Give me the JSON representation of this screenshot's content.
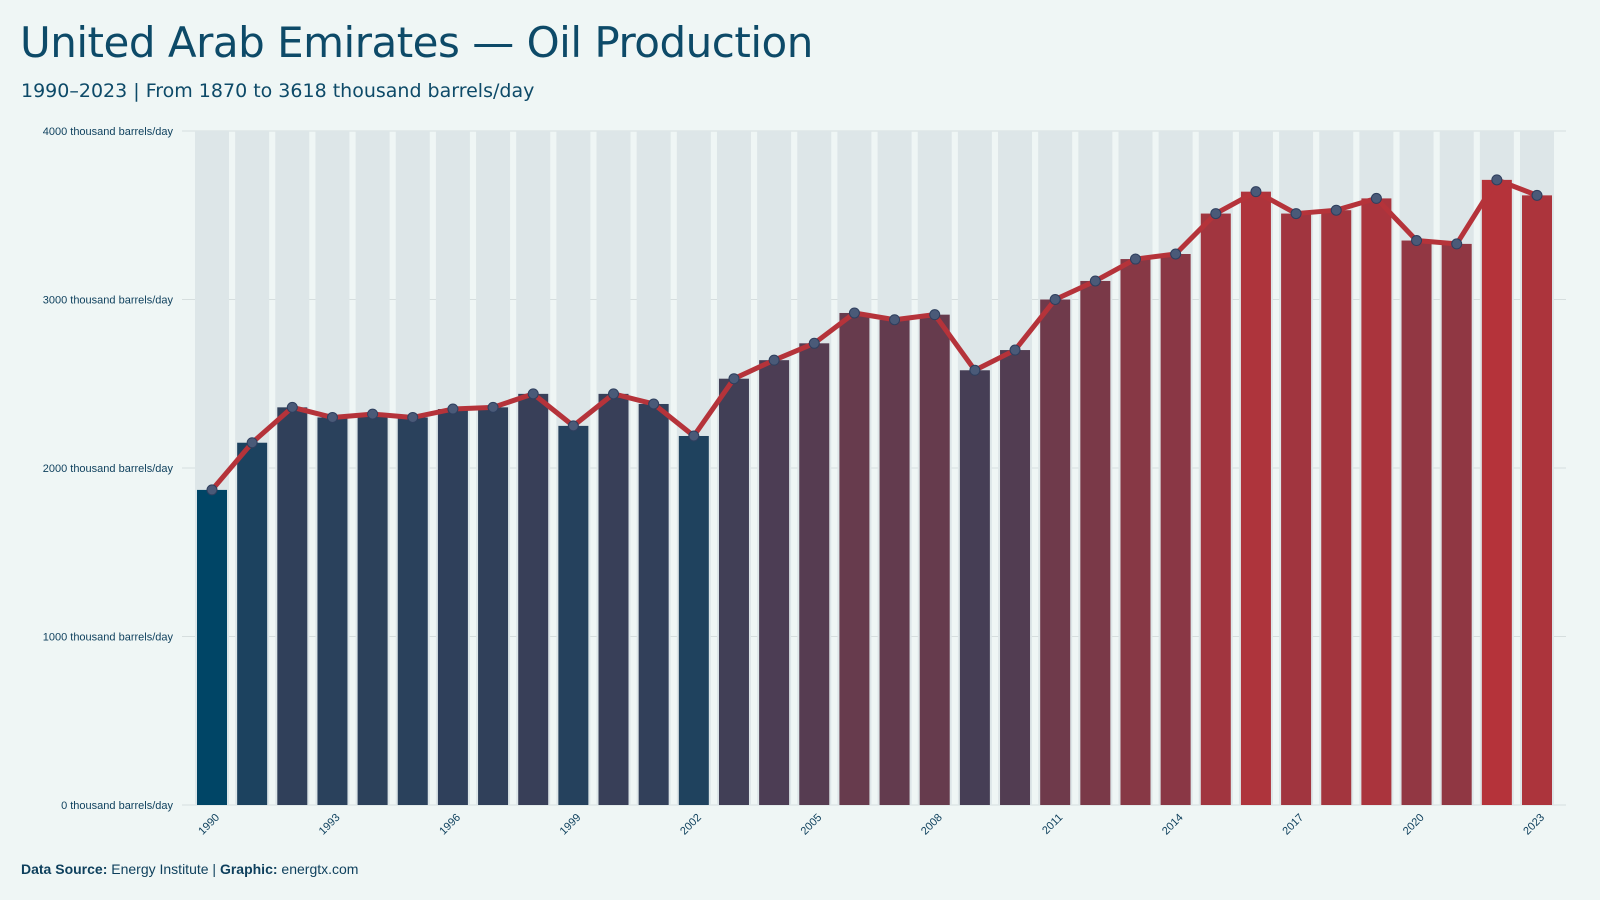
{
  "header": {
    "title": "United Arab Emirates — Oil Production",
    "subtitle": "1990–2023 | From 1870 to 3618 thousand barrels/day"
  },
  "footer": {
    "source_label": "Data Source:",
    "source_value": "Energy Institute",
    "separator": "|",
    "graphic_label": "Graphic:",
    "graphic_value": "energtx.com"
  },
  "colors": {
    "background": "#eff6f5",
    "low": "#004566",
    "high": "#b5333a",
    "line": "#b5333a",
    "marker_fill": "#4a5a78",
    "grid": "#d6dede",
    "text": "#0d3f5c"
  },
  "chart_data": {
    "type": "bar",
    "overlay": "line",
    "ylim": [
      0,
      4000
    ],
    "yticks": [
      0,
      1000,
      2000,
      3000,
      4000
    ],
    "ytick_labels": [
      "0 thousand barrels/day",
      "1000 thousand barrels/day",
      "2000 thousand barrels/day",
      "3000 thousand barrels/day",
      "4000 thousand barrels/day"
    ],
    "x_tick_labels": [
      "1990",
      "1993",
      "1996",
      "1999",
      "2002",
      "2005",
      "2008",
      "2011",
      "2014",
      "2017",
      "2020",
      "2023"
    ],
    "grid": true,
    "legend": "none",
    "categories": [
      "1990",
      "1991",
      "1992",
      "1993",
      "1994",
      "1995",
      "1996",
      "1997",
      "1998",
      "1999",
      "2000",
      "2001",
      "2002",
      "2003",
      "2004",
      "2005",
      "2006",
      "2007",
      "2008",
      "2009",
      "2010",
      "2011",
      "2012",
      "2013",
      "2014",
      "2015",
      "2016",
      "2017",
      "2018",
      "2019",
      "2020",
      "2021",
      "2022",
      "2023"
    ],
    "values": [
      1870,
      2150,
      2360,
      2300,
      2320,
      2300,
      2350,
      2360,
      2440,
      2250,
      2440,
      2380,
      2190,
      2530,
      2640,
      2740,
      2920,
      2880,
      2910,
      2580,
      2700,
      3000,
      3110,
      3240,
      3270,
      3510,
      3640,
      3510,
      3530,
      3600,
      3350,
      3330,
      3710,
      3618
    ]
  }
}
